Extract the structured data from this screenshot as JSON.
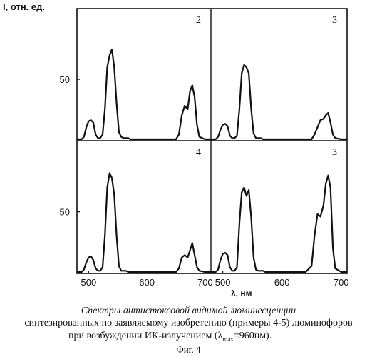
{
  "ylabel": "I, отн. ед.",
  "xlabel": "λ, нм",
  "caption": {
    "line1": "Спектры антистоксовой видимой люминесценции",
    "line2": "синтезированных по заявляемому изобретению (примеры 4-5) люминофоров",
    "line3_pre": "при возбуждении ИК-излучением (λ",
    "line3_sub": "max",
    "line3_post": "=960нм).",
    "line4": "Фиг. 4"
  },
  "chart_data": [
    {
      "type": "line",
      "panel_label": "2",
      "ytick_label": "50",
      "ytick_value": 50,
      "xticks": [],
      "xlim": [
        480,
        710
      ],
      "ylim": [
        0,
        100
      ],
      "series": [
        {
          "x": [
            480,
            488,
            492,
            496,
            500,
            504,
            508,
            512,
            516,
            520,
            524,
            528,
            532,
            536,
            540,
            544,
            548,
            552,
            556,
            560,
            564,
            568,
            572,
            576,
            580,
            600,
            620,
            640,
            650,
            655,
            660,
            665,
            670,
            674,
            678,
            682,
            686,
            690,
            700,
            710
          ],
          "y": [
            0,
            0,
            2,
            10,
            15,
            16,
            14,
            4,
            1,
            1,
            4,
            25,
            60,
            70,
            75,
            60,
            30,
            6,
            2,
            1,
            1,
            1,
            0,
            0,
            0,
            0,
            0,
            0,
            0,
            4,
            20,
            28,
            25,
            40,
            45,
            35,
            12,
            2,
            0,
            0
          ]
        }
      ]
    },
    {
      "type": "line",
      "panel_label": "3",
      "ytick_label": "",
      "xticks": [],
      "xlim": [
        480,
        710
      ],
      "ylim": [
        0,
        100
      ],
      "series": [
        {
          "x": [
            480,
            488,
            492,
            496,
            500,
            504,
            508,
            512,
            516,
            520,
            524,
            528,
            532,
            536,
            540,
            544,
            548,
            552,
            556,
            560,
            564,
            568,
            572,
            576,
            580,
            600,
            620,
            640,
            650,
            655,
            660,
            665,
            670,
            674,
            678,
            682,
            686,
            690,
            700,
            710
          ],
          "y": [
            0,
            0,
            2,
            8,
            12,
            13,
            11,
            3,
            1,
            1,
            3,
            25,
            55,
            62,
            60,
            55,
            25,
            5,
            1,
            1,
            1,
            0,
            0,
            0,
            0,
            0,
            0,
            0,
            0,
            4,
            10,
            16,
            17,
            20,
            22,
            14,
            4,
            1,
            0,
            0
          ]
        }
      ]
    },
    {
      "type": "line",
      "panel_label": "4",
      "ytick_label": "50",
      "ytick_value": 50,
      "xticks": [
        500,
        600,
        700
      ],
      "xlim": [
        480,
        710
      ],
      "ylim": [
        0,
        100
      ],
      "series": [
        {
          "x": [
            480,
            488,
            492,
            496,
            500,
            504,
            508,
            512,
            516,
            520,
            524,
            528,
            532,
            536,
            540,
            544,
            548,
            552,
            556,
            560,
            564,
            568,
            572,
            576,
            580,
            600,
            620,
            640,
            650,
            655,
            660,
            665,
            670,
            674,
            678,
            682,
            686,
            690,
            700,
            710
          ],
          "y": [
            0,
            0,
            2,
            8,
            12,
            13,
            10,
            3,
            1,
            1,
            4,
            30,
            70,
            82,
            78,
            64,
            30,
            5,
            1,
            1,
            1,
            0,
            0,
            0,
            0,
            0,
            0,
            0,
            0,
            3,
            12,
            14,
            12,
            18,
            24,
            14,
            4,
            1,
            0,
            0
          ]
        }
      ]
    },
    {
      "type": "line",
      "panel_label": "3",
      "ytick_label": "",
      "xticks": [
        500,
        600,
        700
      ],
      "xlim": [
        480,
        710
      ],
      "ylim": [
        0,
        100
      ],
      "series": [
        {
          "x": [
            480,
            488,
            492,
            496,
            500,
            504,
            508,
            512,
            516,
            520,
            524,
            528,
            532,
            536,
            540,
            544,
            548,
            552,
            556,
            560,
            564,
            568,
            572,
            576,
            580,
            600,
            620,
            640,
            650,
            655,
            660,
            665,
            670,
            674,
            678,
            682,
            686,
            690,
            700,
            710
          ],
          "y": [
            0,
            0,
            2,
            10,
            15,
            16,
            14,
            4,
            1,
            1,
            4,
            40,
            66,
            70,
            63,
            68,
            45,
            12,
            2,
            1,
            1,
            1,
            0,
            0,
            0,
            0,
            0,
            0,
            5,
            30,
            48,
            46,
            55,
            73,
            80,
            70,
            20,
            3,
            0,
            0
          ]
        }
      ]
    }
  ]
}
